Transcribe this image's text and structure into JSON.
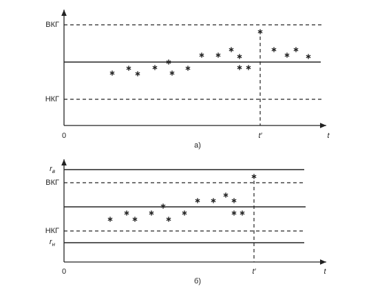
{
  "panels": [
    {
      "caption": "а)",
      "upper_limit": "ВКГ",
      "lower_limit": "НКГ",
      "origin": "0",
      "t_axis": "t",
      "t_prime": "t′"
    },
    {
      "caption": "б)",
      "upper_limit": "ВКГ",
      "lower_limit": "НКГ",
      "origin": "0",
      "t_axis": "t",
      "t_prime": "t′",
      "r_upper": {
        "symbol": "r",
        "subscript": "в"
      },
      "r_lower": {
        "symbol": "r",
        "subscript": "н"
      }
    }
  ]
}
